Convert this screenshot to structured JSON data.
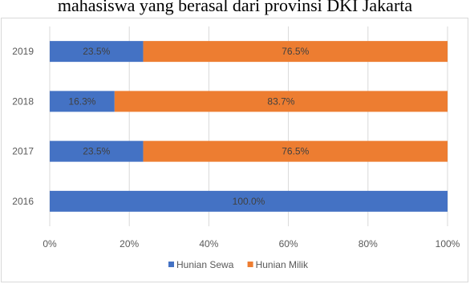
{
  "caption": "mahasiswa yang berasal dari provinsi DKI Jakarta",
  "chart_data": {
    "type": "bar",
    "orientation": "horizontal",
    "stacked": true,
    "percent_stacked": true,
    "categories": [
      "2019",
      "2018",
      "2017",
      "2016"
    ],
    "series": [
      {
        "name": "Hunian Sewa",
        "values": [
          23.5,
          16.3,
          23.5,
          100.0
        ],
        "color": "#4472C4"
      },
      {
        "name": "Hunian Milik",
        "values": [
          76.5,
          83.7,
          76.5,
          0.0
        ],
        "color": "#ED7D31"
      }
    ],
    "data_labels": [
      [
        "23.5%",
        "76.5%"
      ],
      [
        "16.3%",
        "83.7%"
      ],
      [
        "23.5%",
        "76.5%"
      ],
      [
        "100.0%",
        ""
      ]
    ],
    "x_ticks": [
      "0%",
      "20%",
      "40%",
      "60%",
      "80%",
      "100%"
    ],
    "xlim": [
      0,
      100
    ],
    "grid": true,
    "legend_position": "bottom"
  }
}
